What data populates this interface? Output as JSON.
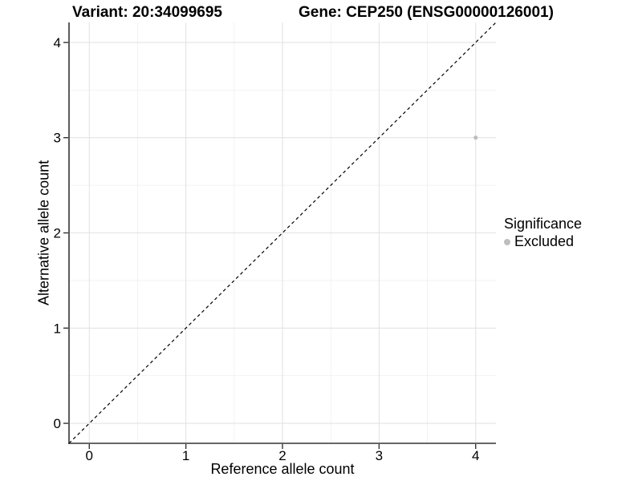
{
  "chart_data": {
    "type": "scatter",
    "titles": {
      "left": "Variant: 20:34099695",
      "right": "Gene: CEP250 (ENSG00000126001)"
    },
    "xlabel": "Reference allele count",
    "ylabel": "Alternative allele count",
    "xlim": [
      -0.21,
      4.21
    ],
    "ylim": [
      -0.21,
      4.21
    ],
    "xticks": [
      0,
      1,
      2,
      3,
      4
    ],
    "yticks": [
      0,
      1,
      2,
      3,
      4
    ],
    "minor_xticks": [
      0.5,
      1.5,
      2.5,
      3.5
    ],
    "minor_yticks": [
      0.5,
      1.5,
      2.5,
      3.5
    ],
    "grid": true,
    "identity_line": {
      "style": "dashed",
      "color": "#000000",
      "slope": 1,
      "intercept": 0
    },
    "points": [
      {
        "x": 4,
        "y": 3,
        "significance": "Excluded",
        "color": "#bebebe",
        "radius": 2.6
      }
    ],
    "legend": {
      "title": "Significance",
      "position": "right",
      "entries": [
        {
          "label": "Excluded",
          "color": "#bebebe"
        }
      ]
    },
    "colors": {
      "grid_major": "#e3e3e3",
      "grid_minor": "#f1f1f1",
      "axis": "#333333",
      "text": "#000000",
      "background": "#ffffff"
    }
  }
}
